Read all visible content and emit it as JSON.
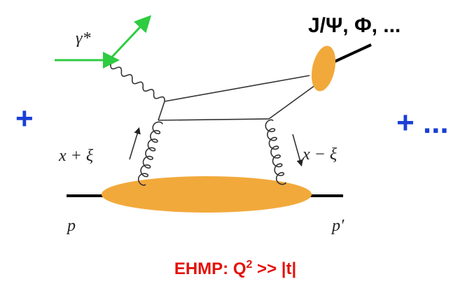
{
  "labels": {
    "final_state": "J/Ψ, Φ, ...",
    "photon": "γ*",
    "plus_left": "+",
    "plus_right": "+ ...",
    "x_plus": "x + ξ",
    "x_minus": "x − ξ",
    "proton_in": "p",
    "proton_out": "p′"
  },
  "caption": {
    "prefix": "EHMP: Q",
    "sup": "2",
    "suffix": " >> |t|"
  }
}
